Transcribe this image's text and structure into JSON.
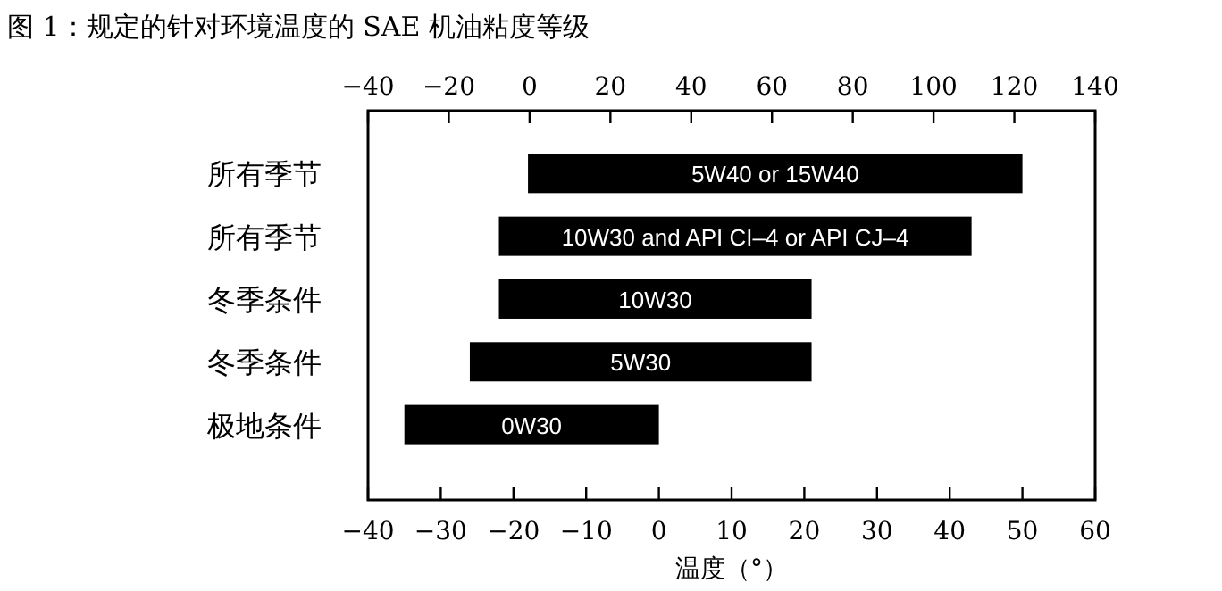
{
  "chart_data": {
    "type": "bar",
    "orientation": "horizontal",
    "title": "图 1：规定的针对环境温度的 SAE 机油粘度等级",
    "xlabel": "温度（°）",
    "categories": [
      "所有季节",
      "所有季节",
      "冬季条件",
      "冬季条件",
      "极地条件"
    ],
    "base": [
      -18,
      -22,
      -22,
      -26,
      -35
    ],
    "values": [
      68,
      65,
      43,
      47,
      35
    ],
    "color": "#000000",
    "annotations": [
      "5W40 or 15W40",
      "10W30 and API CI–4 or API CJ–4",
      "10W30",
      "5W30",
      "0W30"
    ],
    "xlim": [
      -40,
      60
    ],
    "xticks": [
      -40,
      -30,
      -20,
      -10,
      0,
      10,
      20,
      30,
      40,
      50,
      60
    ],
    "x2lim": [
      -40,
      140
    ],
    "x2ticks": [
      -40,
      -20,
      0,
      20,
      40,
      60,
      80,
      100,
      120,
      140
    ]
  }
}
